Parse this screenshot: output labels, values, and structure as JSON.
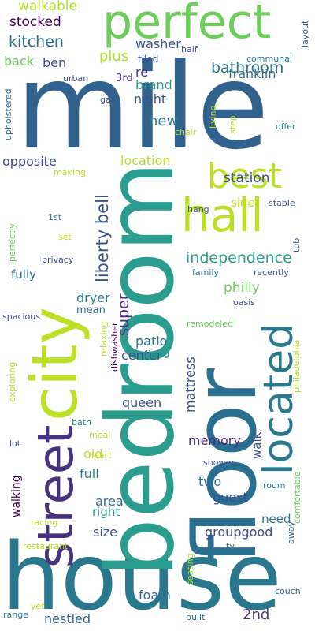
{
  "words": [
    {
      "text": "mile",
      "color": "#31618d"
    },
    {
      "text": "house",
      "color": "#2a788e"
    },
    {
      "text": "bedroom",
      "color": "#2a9d8f"
    },
    {
      "text": "floor",
      "color": "#2a6f8f"
    },
    {
      "text": "city",
      "color": "#bddf26"
    },
    {
      "text": "street",
      "color": "#46327e"
    },
    {
      "text": "perfect",
      "color": "#6ccd5a"
    },
    {
      "text": "located",
      "color": "#2a788e"
    },
    {
      "text": "hall",
      "color": "#bddf26"
    },
    {
      "text": "best",
      "color": "#bddf26"
    },
    {
      "text": "liberty bell",
      "color": "#3b528b"
    },
    {
      "text": "independence",
      "color": "#2a9d8f"
    },
    {
      "text": "bathroom",
      "color": "#2c728e"
    },
    {
      "text": "kitchen",
      "color": "#2c728e"
    },
    {
      "text": "stocked",
      "color": "#440154"
    },
    {
      "text": "walkable",
      "color": "#b5de2b"
    },
    {
      "text": "washer",
      "color": "#3b528b"
    },
    {
      "text": "plus",
      "color": "#b5de2b"
    },
    {
      "text": "back",
      "color": "#6ccd5a"
    },
    {
      "text": "ben",
      "color": "#3b528b"
    },
    {
      "text": "brand",
      "color": "#2a9d8f"
    },
    {
      "text": "re",
      "color": "#46327e"
    },
    {
      "text": "franklin",
      "color": "#2c728e"
    },
    {
      "text": "night",
      "color": "#3b528b"
    },
    {
      "text": "new",
      "color": "#2a788e"
    },
    {
      "text": "station",
      "color": "#3b528b"
    },
    {
      "text": "opposite",
      "color": "#3e4989"
    },
    {
      "text": "location",
      "color": "#b5de2b"
    },
    {
      "text": "side",
      "color": "#bddf26"
    },
    {
      "text": "philly",
      "color": "#6ccd5a"
    },
    {
      "text": "fully",
      "color": "#31688e"
    },
    {
      "text": "super",
      "color": "#472d7b"
    },
    {
      "text": "dryer",
      "color": "#2a788e"
    },
    {
      "text": "mean",
      "color": "#31688e"
    },
    {
      "text": "patio",
      "color": "#2a788e"
    },
    {
      "text": "center",
      "color": "#3b528b"
    },
    {
      "text": "mattress",
      "color": "#3e4989"
    },
    {
      "text": "queen",
      "color": "#3b528b"
    },
    {
      "text": "memory",
      "color": "#482878"
    },
    {
      "text": "walk",
      "color": "#3b528b"
    },
    {
      "text": "old",
      "color": "#bddf26"
    },
    {
      "text": "full",
      "color": "#26828e"
    },
    {
      "text": "walking",
      "color": "#440154"
    },
    {
      "text": "area",
      "color": "#31688e"
    },
    {
      "text": "right",
      "color": "#2a9d8f"
    },
    {
      "text": "two",
      "color": "#2c728e"
    },
    {
      "text": "guest",
      "color": "#3b528b"
    },
    {
      "text": "need",
      "color": "#2a788e"
    },
    {
      "text": "size",
      "color": "#3b528b"
    },
    {
      "text": "groupgood",
      "color": "#3e4989"
    },
    {
      "text": "foam",
      "color": "#31688e"
    },
    {
      "text": "2nd",
      "color": "#46327e"
    },
    {
      "text": "nestled",
      "color": "#31688e"
    },
    {
      "text": "making",
      "color": "#b5de2b"
    },
    {
      "text": "communal",
      "color": "#2a788e"
    },
    {
      "text": "tiled",
      "color": "#3b528b"
    },
    {
      "text": "half",
      "color": "#3b528b"
    },
    {
      "text": "3rd",
      "color": "#46327e"
    },
    {
      "text": "urban",
      "color": "#3b528b"
    },
    {
      "text": "gas",
      "color": "#3b528b"
    },
    {
      "text": "living",
      "color": "#bddf26"
    },
    {
      "text": "chair",
      "color": "#b5de2b"
    },
    {
      "text": "step",
      "color": "#b5de2b"
    },
    {
      "text": "offer",
      "color": "#26828e"
    },
    {
      "text": "layout",
      "color": "#3b528b"
    },
    {
      "text": "upholstered",
      "color": "#31688e"
    },
    {
      "text": "perfectly",
      "color": "#6ccd5a"
    },
    {
      "text": "1st",
      "color": "#2a788e"
    },
    {
      "text": "set",
      "color": "#bddf26"
    },
    {
      "text": "hang",
      "color": "#3b528b"
    },
    {
      "text": "stable",
      "color": "#3b528b"
    },
    {
      "text": "tub",
      "color": "#3b528b"
    },
    {
      "text": "privacy",
      "color": "#3b528b"
    },
    {
      "text": "family",
      "color": "#2a788e"
    },
    {
      "text": "recently",
      "color": "#3b528b"
    },
    {
      "text": "spacious",
      "color": "#3b528b"
    },
    {
      "text": "oasis",
      "color": "#3b528b"
    },
    {
      "text": "remodeled",
      "color": "#6ccd5a"
    },
    {
      "text": "relaxing",
      "color": "#b5de2b"
    },
    {
      "text": "dishwasher",
      "color": "#440154"
    },
    {
      "text": "dining",
      "color": "#2a9d8f"
    },
    {
      "text": "philadelphia",
      "color": "#b5de2b"
    },
    {
      "text": "exploring",
      "color": "#b5de2b"
    },
    {
      "text": "bath",
      "color": "#2a788e"
    },
    {
      "text": "meal",
      "color": "#b5de2b"
    },
    {
      "text": "comfortable",
      "color": "#6ccd5a"
    },
    {
      "text": "heart",
      "color": "#bddf26"
    },
    {
      "text": "lot",
      "color": "#3b528b"
    },
    {
      "text": "shower",
      "color": "#3b528b"
    },
    {
      "text": "racing",
      "color": "#b5de2b"
    },
    {
      "text": "room",
      "color": "#26828e"
    },
    {
      "text": "restaurant",
      "color": "#b5de2b"
    },
    {
      "text": "away",
      "color": "#31688e"
    },
    {
      "text": "tv",
      "color": "#2a788e"
    },
    {
      "text": "seating",
      "color": "#b5de2b"
    },
    {
      "text": "couch",
      "color": "#31688e"
    },
    {
      "text": "yet",
      "color": "#bddf26"
    },
    {
      "text": "range",
      "color": "#2a788e"
    },
    {
      "text": "built",
      "color": "#2a788e"
    }
  ]
}
